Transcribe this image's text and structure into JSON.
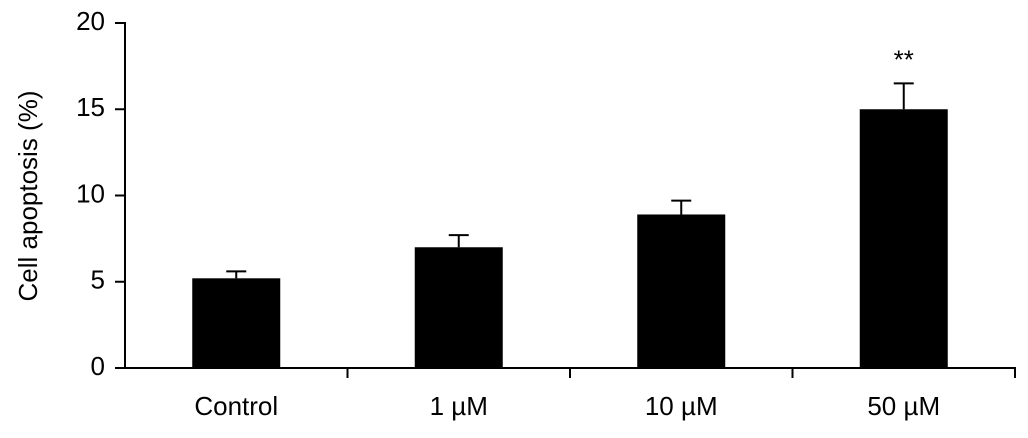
{
  "chart_data": {
    "type": "bar",
    "y_label": "Cell apoptosis (%)",
    "categories": [
      "Control",
      "1 µM",
      "10 µM",
      "50 µM"
    ],
    "values": [
      5.2,
      7.0,
      8.9,
      15.0
    ],
    "errors": [
      0.4,
      0.7,
      0.8,
      1.5
    ],
    "color": "#000000",
    "ylim": [
      0,
      20
    ],
    "yticks": [
      0,
      5,
      10,
      15,
      20
    ],
    "annotations": [
      {
        "text": "**",
        "category": "50 µM"
      }
    ]
  }
}
